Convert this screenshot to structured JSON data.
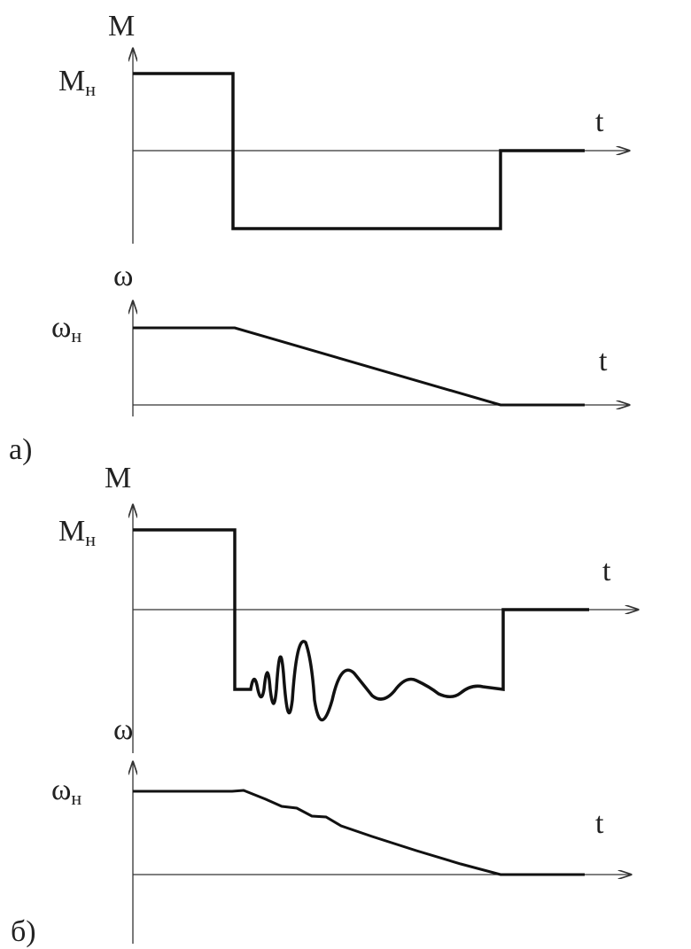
{
  "panel_a": {
    "label": "а)",
    "torque": {
      "axis_label": "M",
      "level_label": {
        "base": "M",
        "sub": "н"
      },
      "time_label": "t"
    },
    "speed": {
      "axis_label": "ω",
      "level_label": {
        "base": "ω",
        "sub": "н"
      },
      "time_label": "t"
    }
  },
  "panel_b": {
    "label": "б)",
    "torque": {
      "axis_label": "M",
      "level_label": {
        "base": "M",
        "sub": "н"
      },
      "time_label": "t"
    },
    "speed": {
      "axis_label": "ω",
      "level_label": {
        "base": "ω",
        "sub": "н"
      },
      "time_label": "t"
    }
  }
}
